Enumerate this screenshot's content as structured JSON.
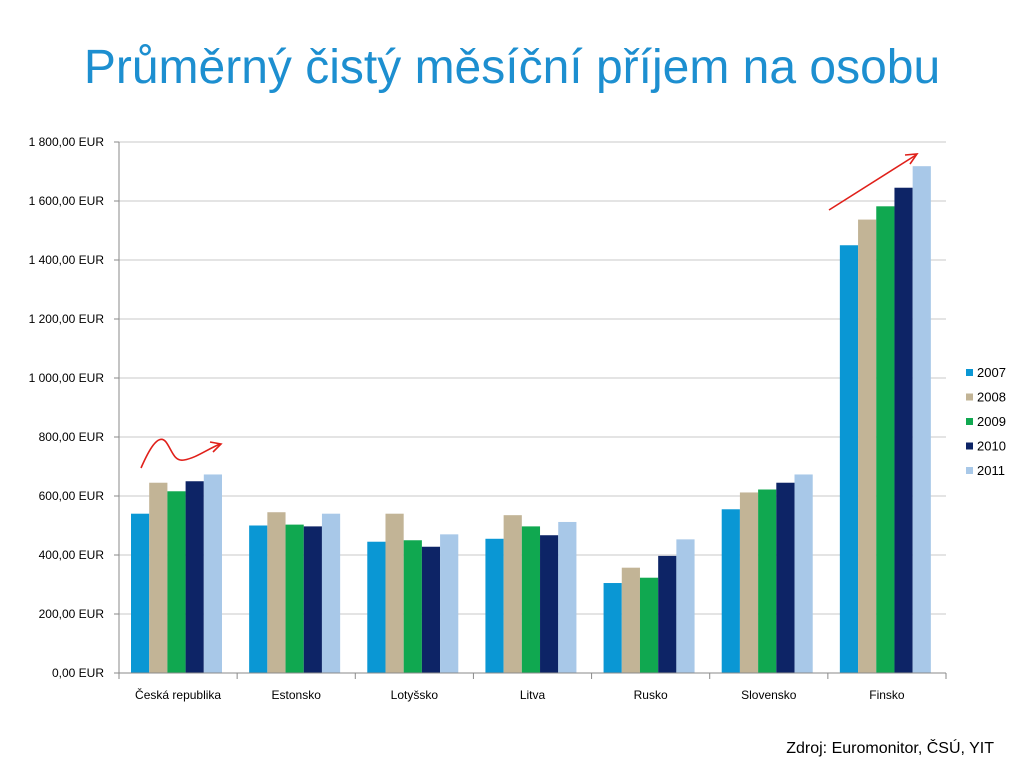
{
  "title": "Průměrný čistý měsíční příjem na osobu",
  "source": "Zdroj: Euromonitor, ČSÚ, YIT",
  "chart_data": {
    "type": "bar",
    "categories": [
      "Česká republika",
      "Estonsko",
      "Lotyšsko",
      "Litva",
      "Rusko",
      "Slovensko",
      "Finsko"
    ],
    "series": [
      {
        "name": "2007",
        "color": "#0a97d4",
        "values": [
          540,
          500,
          445,
          455,
          305,
          555,
          1450
        ]
      },
      {
        "name": "2008",
        "color": "#c2b496",
        "values": [
          645,
          545,
          540,
          535,
          357,
          612,
          1537
        ]
      },
      {
        "name": "2009",
        "color": "#10a850",
        "values": [
          616,
          503,
          450,
          497,
          323,
          622,
          1582
        ]
      },
      {
        "name": "2010",
        "color": "#0d2466",
        "values": [
          650,
          497,
          428,
          467,
          397,
          645,
          1645
        ]
      },
      {
        "name": "2011",
        "color": "#a8c8e8",
        "values": [
          673,
          540,
          470,
          512,
          453,
          673,
          1718
        ]
      }
    ],
    "ylim": [
      0,
      1800
    ],
    "yticks": [
      {
        "value": 0,
        "label": "0,00 EUR"
      },
      {
        "value": 200,
        "label": "200,00 EUR"
      },
      {
        "value": 400,
        "label": "400,00 EUR"
      },
      {
        "value": 600,
        "label": "600,00 EUR"
      },
      {
        "value": 800,
        "label": "800,00 EUR"
      },
      {
        "value": 1000,
        "label": "1 000,00 EUR"
      },
      {
        "value": 1200,
        "label": "1 200,00 EUR"
      },
      {
        "value": 1400,
        "label": "1 400,00 EUR"
      },
      {
        "value": 1600,
        "label": "1 600,00 EUR"
      },
      {
        "value": 1800,
        "label": "1 800,00 EUR"
      }
    ],
    "grid": true,
    "legend_position": "right",
    "annotation_color": "#e0201a"
  }
}
